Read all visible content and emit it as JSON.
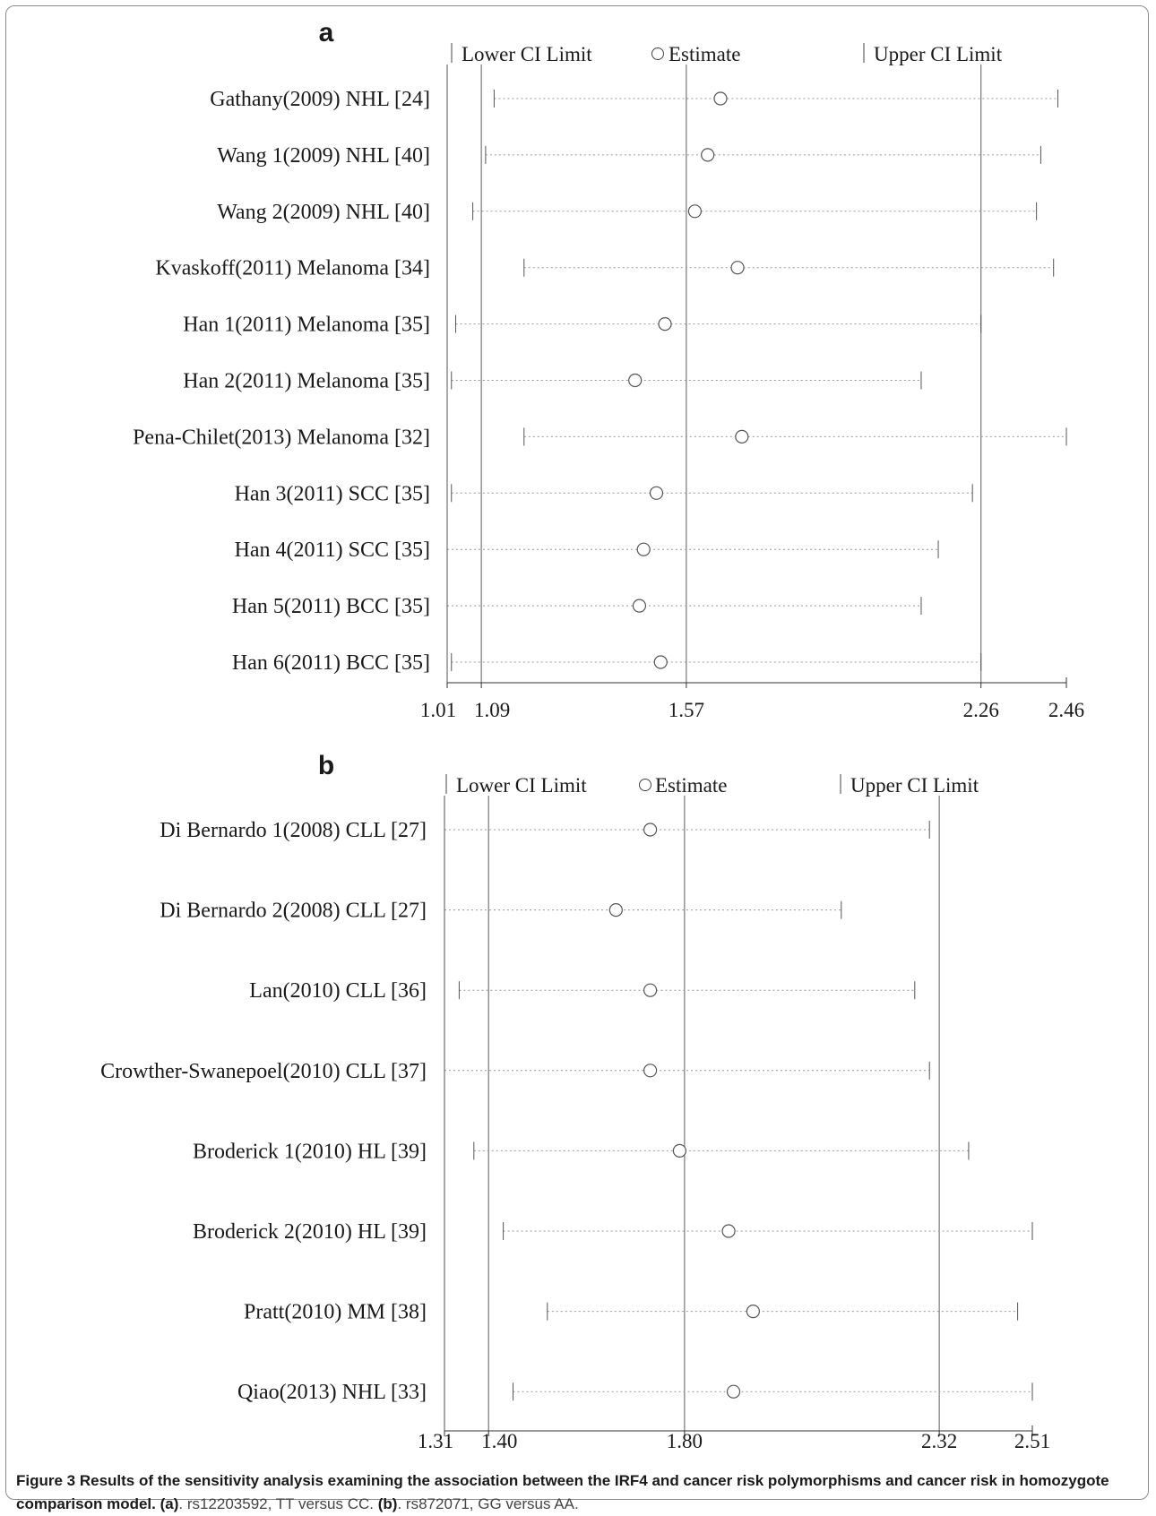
{
  "chart_data": [
    {
      "type": "forest",
      "panel_label": "a",
      "legend": {
        "lower": "Lower CI Limit",
        "estimate": "Estimate",
        "upper": "Upper CI Limit"
      },
      "xlim": [
        1.01,
        2.46
      ],
      "ticks": [
        1.01,
        1.09,
        1.57,
        2.26,
        2.46
      ],
      "tick_labels": [
        "1.01",
        "1.09",
        "1.57",
        "2.26",
        "2.46"
      ],
      "ref_lines": [
        1.09,
        1.57,
        2.26
      ],
      "studies": [
        {
          "label": "Gathany(2009) NHL [24]",
          "lower": 1.12,
          "estimate": 1.65,
          "upper": 2.44
        },
        {
          "label": "Wang 1(2009) NHL [40]",
          "lower": 1.1,
          "estimate": 1.62,
          "upper": 2.4
        },
        {
          "label": "Wang 2(2009) NHL [40]",
          "lower": 1.07,
          "estimate": 1.59,
          "upper": 2.39
        },
        {
          "label": "Kvaskoff(2011) Melanoma [34]",
          "lower": 1.19,
          "estimate": 1.69,
          "upper": 2.43
        },
        {
          "label": "Han 1(2011) Melanoma [35]",
          "lower": 1.03,
          "estimate": 1.52,
          "upper": 2.26
        },
        {
          "label": "Han 2(2011) Melanoma [35]",
          "lower": 1.02,
          "estimate": 1.45,
          "upper": 2.12
        },
        {
          "label": "Pena-Chilet(2013) Melanoma [32]",
          "lower": 1.19,
          "estimate": 1.7,
          "upper": 2.46
        },
        {
          "label": "Han 3(2011) SCC [35]",
          "lower": 1.02,
          "estimate": 1.5,
          "upper": 2.24
        },
        {
          "label": "Han 4(2011) SCC [35]",
          "lower": 1.01,
          "estimate": 1.47,
          "upper": 2.16
        },
        {
          "label": "Han 5(2011) BCC [35]",
          "lower": 1.01,
          "estimate": 1.46,
          "upper": 2.12
        },
        {
          "label": "Han 6(2011) BCC [35]",
          "lower": 1.02,
          "estimate": 1.51,
          "upper": 2.26
        }
      ]
    },
    {
      "type": "forest",
      "panel_label": "b",
      "legend": {
        "lower": "Lower CI Limit",
        "estimate": "Estimate",
        "upper": "Upper CI Limit"
      },
      "xlim": [
        1.31,
        2.51
      ],
      "ticks": [
        1.31,
        1.4,
        1.8,
        2.32,
        2.51
      ],
      "tick_labels": [
        "1.31",
        "1.40",
        "1.80",
        "2.32",
        "2.51"
      ],
      "ref_lines": [
        1.4,
        1.8,
        2.32
      ],
      "studies": [
        {
          "label": "Di Bernardo 1(2008) CLL [27]",
          "lower": 1.31,
          "estimate": 1.73,
          "upper": 2.3
        },
        {
          "label": "Di Bernardo 2(2008) CLL [27]",
          "lower": 1.31,
          "estimate": 1.66,
          "upper": 2.12
        },
        {
          "label": "Lan(2010) CLL [36]",
          "lower": 1.34,
          "estimate": 1.73,
          "upper": 2.27
        },
        {
          "label": "Crowther-Swanepoel(2010) CLL [37]",
          "lower": 1.31,
          "estimate": 1.73,
          "upper": 2.3
        },
        {
          "label": "Broderick 1(2010) HL [39]",
          "lower": 1.37,
          "estimate": 1.79,
          "upper": 2.38
        },
        {
          "label": "Broderick 2(2010) HL [39]",
          "lower": 1.43,
          "estimate": 1.89,
          "upper": 2.51
        },
        {
          "label": "Pratt(2010) MM [38]",
          "lower": 1.52,
          "estimate": 1.94,
          "upper": 2.48
        },
        {
          "label": "Qiao(2013) NHL [33]",
          "lower": 1.45,
          "estimate": 1.9,
          "upper": 2.51
        }
      ]
    }
  ],
  "caption": {
    "bold": "Figure 3 Results of the sensitivity analysis examining the association between the IRF4 and cancer risk polymorphisms and cancer risk in homozygote comparison model. ",
    "part_a_label": "(a)",
    "part_a_text": ". rs12203592, TT versus CC. ",
    "part_b_label": "(b)",
    "part_b_text": ". rs872071, GG versus AA."
  }
}
